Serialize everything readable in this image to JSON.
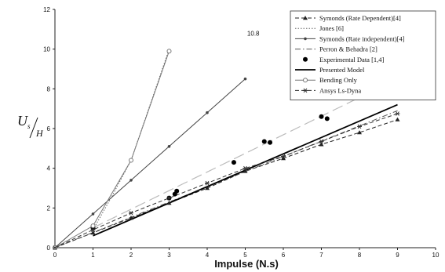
{
  "chart_data": {
    "type": "line",
    "title": "",
    "xlabel": "Impulse (N.s)",
    "ylabel": {
      "main": "U",
      "sub": "s",
      "denominator": "H"
    },
    "xlim": [
      0,
      10
    ],
    "ylim": [
      0,
      12
    ],
    "xticks": [
      0,
      1,
      2,
      3,
      4,
      5,
      6,
      7,
      8,
      9,
      10
    ],
    "yticks": [
      0,
      2,
      4,
      6,
      8,
      10,
      12
    ],
    "grid": false,
    "legend_position": "top-right",
    "series": [
      {
        "name": "Symonds (Rate Dependent)[4]",
        "style": "dash-triangle",
        "color": "#222222",
        "x": [
          0,
          1,
          2,
          3,
          4,
          5,
          6,
          7,
          8,
          9
        ],
        "y": [
          0,
          0.75,
          1.5,
          2.25,
          3.0,
          3.85,
          4.5,
          5.2,
          5.8,
          6.45
        ]
      },
      {
        "name": "Jones [6]",
        "style": "dotted",
        "color": "#666666",
        "x": [
          1,
          1.5,
          2,
          2.5,
          3
        ],
        "y": [
          0.9,
          2.6,
          4.4,
          7.2,
          10.0
        ]
      },
      {
        "name": "Symonds (Rate independent)[4]",
        "style": "solid-dot",
        "color": "#444444",
        "x": [
          0,
          1,
          2,
          3,
          4,
          5
        ],
        "y": [
          0,
          1.7,
          3.4,
          5.1,
          6.8,
          8.5
        ]
      },
      {
        "name": "Perron & Behadra [2]",
        "style": "dash-dot",
        "color": "#555555",
        "x": [
          0,
          9
        ],
        "y": [
          0,
          6.9
        ]
      },
      {
        "name": "Experimental Data [1,4]",
        "style": "markers",
        "color": "#000000",
        "x": [
          1.0,
          3.0,
          3.15,
          3.2,
          4.7,
          5.5,
          5.65,
          7.0,
          7.15
        ],
        "y": [
          1.0,
          2.5,
          2.7,
          2.85,
          4.3,
          5.35,
          5.3,
          6.6,
          6.5
        ]
      },
      {
        "name": "Presented Model",
        "style": "solid-thick",
        "color": "#000000",
        "x": [
          1,
          9
        ],
        "y": [
          0.6,
          7.2
        ]
      },
      {
        "name": "Bending Only",
        "style": "solid-open-circle",
        "color": "#777777",
        "x": [
          0,
          1,
          2,
          3
        ],
        "y": [
          0,
          1.1,
          4.4,
          9.9
        ]
      },
      {
        "name": "Ansys Ls-Dyna",
        "style": "dash-star",
        "color": "#333333",
        "x": [
          0,
          1,
          2,
          3,
          4,
          5,
          6,
          7,
          8,
          9
        ],
        "y": [
          0,
          0.9,
          1.75,
          2.5,
          3.25,
          4.0,
          4.6,
          5.35,
          6.1,
          6.75
        ]
      }
    ],
    "extra_lines": [
      {
        "style": "long-dash-light",
        "color": "#bbbbbb",
        "x": [
          1,
          9
        ],
        "y": [
          1.0,
          8.5
        ]
      }
    ],
    "annotations": [
      {
        "text": "10.8",
        "x": 5.05,
        "y": 10.8
      }
    ]
  }
}
